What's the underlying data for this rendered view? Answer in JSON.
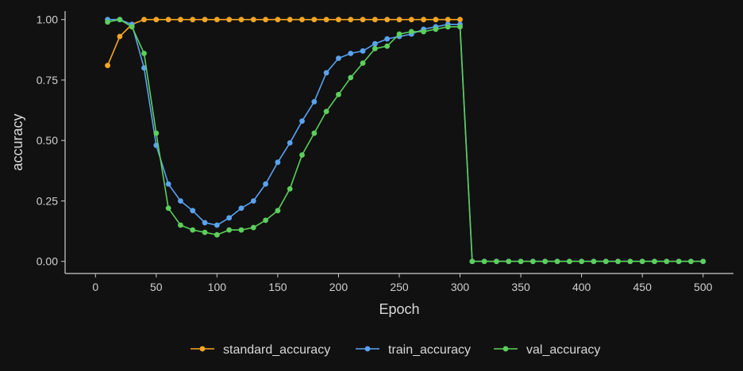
{
  "chart_data": {
    "type": "line",
    "title": "",
    "xlabel": "Epoch",
    "ylabel": "accuracy",
    "xlim": [
      0,
      500
    ],
    "ylim": [
      0,
      1
    ],
    "x_ticks": [
      0,
      50,
      100,
      150,
      200,
      250,
      300,
      350,
      400,
      450,
      500
    ],
    "y_ticks": [
      0,
      0.25,
      0.5,
      0.75,
      1
    ],
    "y_tick_labels": [
      "0.00",
      "0.25",
      "0.50",
      "0.75",
      "1.00"
    ],
    "grid": false,
    "legend": "bottom",
    "x": [
      10,
      20,
      30,
      40,
      50,
      60,
      70,
      80,
      90,
      100,
      110,
      120,
      130,
      140,
      150,
      160,
      170,
      180,
      190,
      200,
      210,
      220,
      230,
      240,
      250,
      260,
      270,
      280,
      290,
      300,
      310,
      320,
      330,
      340,
      350,
      360,
      370,
      380,
      390,
      400,
      410,
      420,
      430,
      440,
      450,
      460,
      470,
      480,
      490,
      500
    ],
    "series": [
      {
        "name": "standard_accuracy",
        "color": "#f5a623",
        "values": [
          0.81,
          0.93,
          0.98,
          1,
          1,
          1,
          1,
          1,
          1,
          1,
          1,
          1,
          1,
          1,
          1,
          1,
          1,
          1,
          1,
          1,
          1,
          1,
          1,
          1,
          1,
          1,
          1,
          1,
          1,
          1,
          null,
          null,
          null,
          null,
          null,
          null,
          null,
          null,
          null,
          null,
          null,
          null,
          null,
          null,
          null,
          null,
          null,
          null,
          null,
          null
        ]
      },
      {
        "name": "train_accuracy",
        "color": "#5aa2f0",
        "values": [
          1,
          1,
          0.98,
          0.8,
          0.48,
          0.32,
          0.25,
          0.21,
          0.16,
          0.15,
          0.18,
          0.22,
          0.25,
          0.32,
          0.41,
          0.49,
          0.58,
          0.66,
          0.78,
          0.84,
          0.86,
          0.87,
          0.9,
          0.92,
          0.93,
          0.94,
          0.96,
          0.97,
          0.98,
          0.98,
          0,
          0,
          0,
          0,
          0,
          0,
          0,
          0,
          0,
          0,
          0,
          0,
          0,
          0,
          0,
          0,
          0,
          0,
          0,
          0
        ]
      },
      {
        "name": "val_accuracy",
        "color": "#5ccf5c",
        "values": [
          0.99,
          1,
          0.97,
          0.86,
          0.53,
          0.22,
          0.15,
          0.13,
          0.12,
          0.11,
          0.13,
          0.13,
          0.14,
          0.17,
          0.21,
          0.3,
          0.44,
          0.53,
          0.62,
          0.69,
          0.76,
          0.82,
          0.88,
          0.89,
          0.94,
          0.95,
          0.95,
          0.96,
          0.97,
          0.97,
          0,
          0,
          0,
          0,
          0,
          0,
          0,
          0,
          0,
          0,
          0,
          0,
          0,
          0,
          0,
          0,
          0,
          0,
          0,
          0
        ]
      }
    ]
  }
}
